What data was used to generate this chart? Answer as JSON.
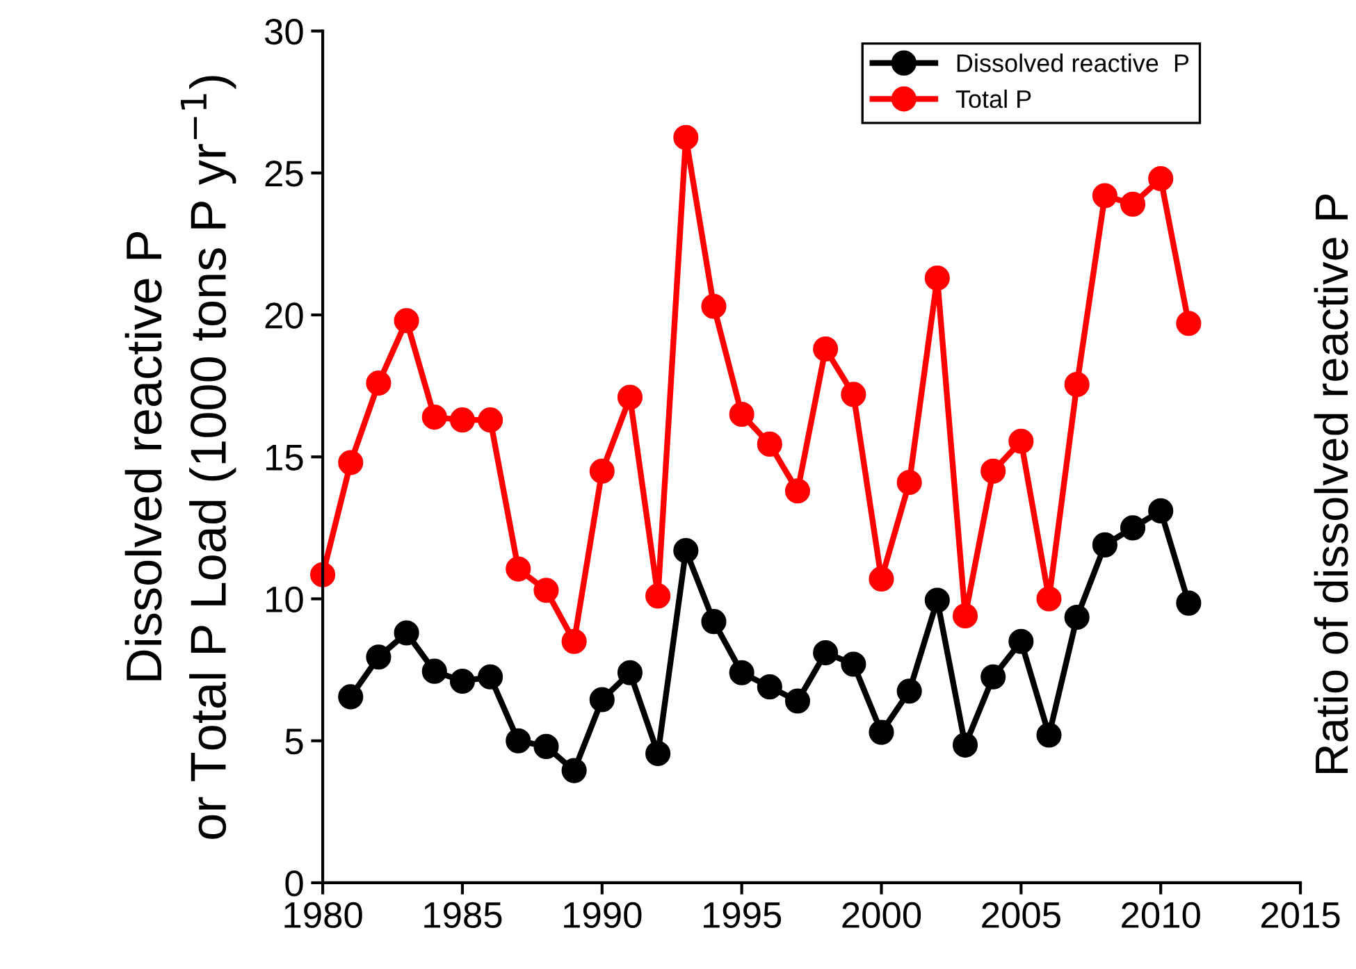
{
  "chart_data": {
    "type": "line",
    "ylabel": "Dissolved reactive P\nor Total P Load (1000 tons P yr$^{−1}$)",
    "y2label": "Ratio of dissolved reactive P",
    "x": [
      1980,
      1981,
      1982,
      1983,
      1984,
      1985,
      1986,
      1987,
      1988,
      1989,
      1990,
      1991,
      1992,
      1993,
      1994,
      1995,
      1996,
      1997,
      1998,
      1999,
      2000,
      2001,
      2002,
      2003,
      2004,
      2005,
      2006,
      2007,
      2008,
      2009,
      2010,
      2011
    ],
    "series": [
      {
        "name": "Dissolved reactive  P",
        "color": "#000000",
        "values": [
          null,
          6.55,
          7.95,
          8.8,
          7.45,
          7.1,
          7.25,
          5.0,
          4.8,
          3.95,
          6.45,
          7.4,
          4.55,
          11.7,
          9.2,
          7.4,
          6.9,
          6.4,
          8.1,
          7.7,
          5.3,
          6.75,
          9.95,
          4.85,
          7.25,
          8.5,
          5.2,
          9.35,
          11.9,
          12.5,
          13.1,
          9.85
        ]
      },
      {
        "name": "Total P",
        "color": "#ff0000",
        "values": [
          10.85,
          14.8,
          17.6,
          19.8,
          16.4,
          16.3,
          16.3,
          11.05,
          10.3,
          8.5,
          14.5,
          17.1,
          10.1,
          26.25,
          20.3,
          16.5,
          15.45,
          13.8,
          18.8,
          17.2,
          10.7,
          14.1,
          21.3,
          9.4,
          14.5,
          15.55,
          10.0,
          17.55,
          24.2,
          23.9,
          24.8,
          19.7
        ]
      }
    ],
    "xlim": [
      1980,
      2015
    ],
    "xticks": [
      1980,
      1985,
      1990,
      1995,
      2000,
      2005,
      2010,
      2015
    ],
    "ylim": [
      0,
      30
    ],
    "yticks": [
      0,
      5,
      10,
      15,
      20,
      25,
      30
    ],
    "marker": "circle",
    "line_style": "solid",
    "grid": false,
    "legend": "top right"
  }
}
